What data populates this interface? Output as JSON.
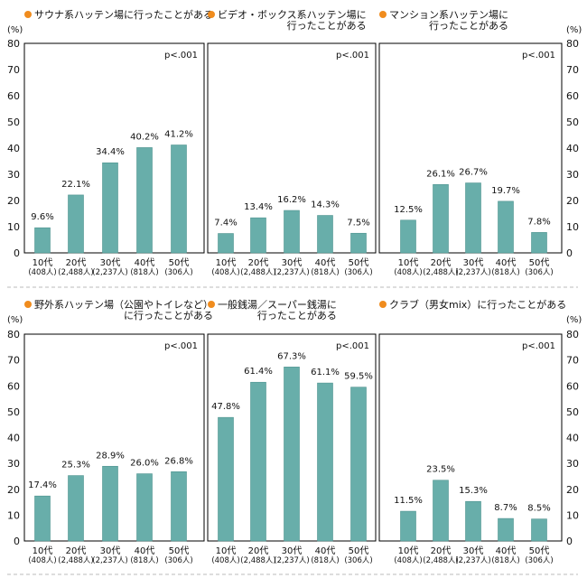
{
  "y_unit": "(%)",
  "p_value": "p<.001",
  "colors": {
    "bar": "#68aeaa",
    "bar_edge": "#4f938f",
    "bullet": "#f08c1e",
    "frame": "#000000",
    "separator": "#bbbbbb"
  },
  "y_ticks": [
    "80",
    "70",
    "60",
    "50",
    "40",
    "30",
    "20",
    "10",
    "0"
  ],
  "chart_data": [
    {
      "type": "bar",
      "title_lines": [
        "サウナ系ハッテン場に行ったことがある"
      ],
      "categories": [
        "10代",
        "20代",
        "30代",
        "40代",
        "50代"
      ],
      "category_notes": [
        "(408人)",
        "(2,488人)",
        "(2,237人)",
        "(818人)",
        "(306人)"
      ],
      "values": [
        9.6,
        22.1,
        34.4,
        40.2,
        41.2
      ],
      "value_labels": [
        "9.6%",
        "22.1%",
        "34.4%",
        "40.2%",
        "41.2%"
      ],
      "ylim": [
        0,
        80
      ],
      "ylabel": "(%)",
      "annotation": "p<.001"
    },
    {
      "type": "bar",
      "title_lines": [
        "ビデオ・ボックス系ハッテン場に",
        "行ったことがある"
      ],
      "categories": [
        "10代",
        "20代",
        "30代",
        "40代",
        "50代"
      ],
      "category_notes": [
        "(408人)",
        "(2,488人)",
        "(2,237人)",
        "(818人)",
        "(306人)"
      ],
      "values": [
        7.4,
        13.4,
        16.2,
        14.3,
        7.5
      ],
      "value_labels": [
        "7.4%",
        "13.4%",
        "16.2%",
        "14.3%",
        "7.5%"
      ],
      "ylim": [
        0,
        80
      ],
      "annotation": "p<.001"
    },
    {
      "type": "bar",
      "title_lines": [
        "マンション系ハッテン場に",
        "行ったことがある"
      ],
      "categories": [
        "10代",
        "20代",
        "30代",
        "40代",
        "50代"
      ],
      "category_notes": [
        "(408人)",
        "(2,488人)",
        "(2,237人)",
        "(818人)",
        "(306人)"
      ],
      "values": [
        12.5,
        26.1,
        26.7,
        19.7,
        7.8
      ],
      "value_labels": [
        "12.5%",
        "26.1%",
        "26.7%",
        "19.7%",
        "7.8%"
      ],
      "ylim": [
        0,
        80
      ],
      "ylabel": "(%)",
      "annotation": "p<.001"
    },
    {
      "type": "bar",
      "title_lines": [
        "野外系ハッテン場（公園やトイレなど）",
        "に行ったことがある"
      ],
      "categories": [
        "10代",
        "20代",
        "30代",
        "40代",
        "50代"
      ],
      "category_notes": [
        "(408人)",
        "(2,488人)",
        "(2,237人)",
        "(818人)",
        "(306人)"
      ],
      "values": [
        17.4,
        25.3,
        28.9,
        26.0,
        26.8
      ],
      "value_labels": [
        "17.4%",
        "25.3%",
        "28.9%",
        "26.0%",
        "26.8%"
      ],
      "ylim": [
        0,
        80
      ],
      "ylabel": "(%)",
      "annotation": "p<.001"
    },
    {
      "type": "bar",
      "title_lines": [
        "一般銭湯／スーパー銭湯に",
        "行ったことがある"
      ],
      "categories": [
        "10代",
        "20代",
        "30代",
        "40代",
        "50代"
      ],
      "category_notes": [
        "(408人)",
        "(2,488人)",
        "(2,237人)",
        "(818人)",
        "(306人)"
      ],
      "values": [
        47.8,
        61.4,
        67.3,
        61.1,
        59.5
      ],
      "value_labels": [
        "47.8%",
        "61.4%",
        "67.3%",
        "61.1%",
        "59.5%"
      ],
      "ylim": [
        0,
        80
      ],
      "annotation": "p<.001"
    },
    {
      "type": "bar",
      "title_lines": [
        "クラブ（男女mix）に行ったことがある"
      ],
      "categories": [
        "10代",
        "20代",
        "30代",
        "40代",
        "50代"
      ],
      "category_notes": [
        "(408人)",
        "(2,488人)",
        "(2,237人)",
        "(818人)",
        "(306人)"
      ],
      "values": [
        11.5,
        23.5,
        15.3,
        8.7,
        8.5
      ],
      "value_labels": [
        "11.5%",
        "23.5%",
        "15.3%",
        "8.7%",
        "8.5%"
      ],
      "ylim": [
        0,
        80
      ],
      "ylabel": "(%)",
      "annotation": "p<.001"
    }
  ]
}
